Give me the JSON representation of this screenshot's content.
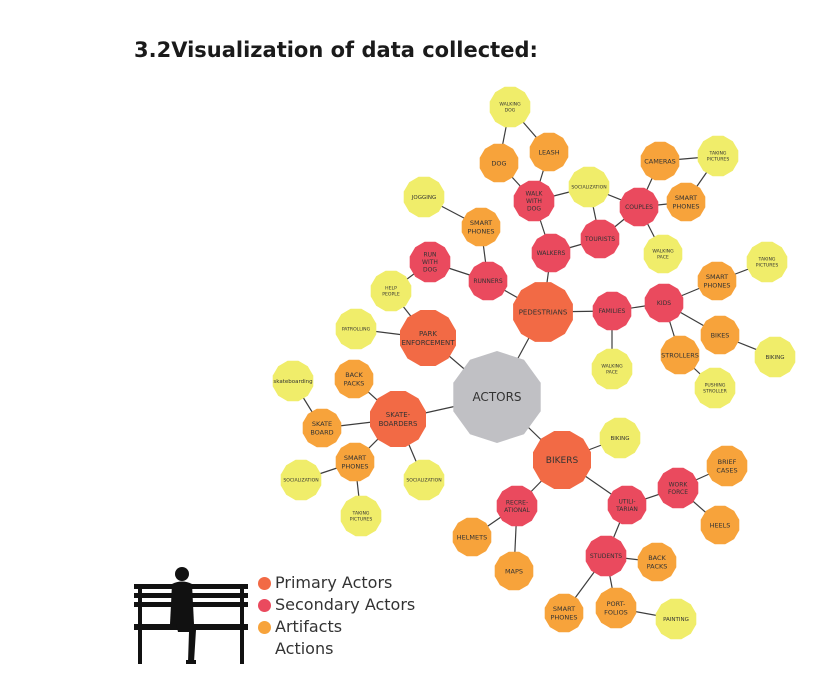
{
  "title": "3.2Visualization of data collected:",
  "colors": {
    "center": "#c0c0c4",
    "primary": "#f26a45",
    "secondary": "#ea4a5e",
    "artifact": "#f7a33b",
    "action": "#f0ed6a",
    "edge": "#3d3d3d",
    "bench": "#111111"
  },
  "legend": [
    {
      "label": "Primary Actors",
      "color": "#f26a45"
    },
    {
      "label": "Secondary Actors",
      "color": "#ea4a5e"
    },
    {
      "label": "Artifacts",
      "color": "#f7a33b"
    },
    {
      "label": "Actions",
      "color": null
    }
  ],
  "nodes": [
    {
      "id": "actors",
      "label": "ACTORS",
      "kind": "center"
    },
    {
      "id": "pedestrians",
      "label": "PEDESTRIANS",
      "kind": "primary"
    },
    {
      "id": "park-enforcement",
      "label": "PARK ENFORCEMENT",
      "kind": "primary"
    },
    {
      "id": "skateboarders",
      "label": "SKATE- BOARDERS",
      "kind": "primary"
    },
    {
      "id": "bikers",
      "label": "BIKERS",
      "kind": "primary"
    },
    {
      "id": "walkers",
      "label": "WALKERS",
      "kind": "secondary"
    },
    {
      "id": "runners",
      "label": "RUNNERS",
      "kind": "secondary"
    },
    {
      "id": "families",
      "label": "FAMILIES",
      "kind": "secondary"
    },
    {
      "id": "walk-with-dog",
      "label": "WALK WITH DOG",
      "kind": "secondary"
    },
    {
      "id": "tourists",
      "label": "TOURISTS",
      "kind": "secondary"
    },
    {
      "id": "couples",
      "label": "COUPLES",
      "kind": "secondary"
    },
    {
      "id": "run-with-dog",
      "label": "RUN WITH DOG",
      "kind": "secondary"
    },
    {
      "id": "kids",
      "label": "KIDS",
      "kind": "secondary"
    },
    {
      "id": "recreational",
      "label": "RECRE- ATIONAL",
      "kind": "secondary"
    },
    {
      "id": "utilitarian",
      "label": "UTILI- TARIAN",
      "kind": "secondary"
    },
    {
      "id": "work-force",
      "label": "WORK FORCE",
      "kind": "secondary"
    },
    {
      "id": "students",
      "label": "STUDENTS",
      "kind": "secondary"
    },
    {
      "id": "dog",
      "label": "DOG",
      "kind": "artifact"
    },
    {
      "id": "leash",
      "label": "LEASH",
      "kind": "artifact"
    },
    {
      "id": "cameras",
      "label": "CAMERAS",
      "kind": "artifact"
    },
    {
      "id": "smart-phones-couples",
      "label": "SMART PHONES",
      "kind": "artifact"
    },
    {
      "id": "smart-phones-runners",
      "label": "SMART PHONES",
      "kind": "artifact"
    },
    {
      "id": "smart-phones-kids",
      "label": "SMART PHONES",
      "kind": "artifact"
    },
    {
      "id": "bikes",
      "label": "BIKES",
      "kind": "artifact"
    },
    {
      "id": "strollers",
      "label": "STROLLERS",
      "kind": "artifact"
    },
    {
      "id": "back-packs-skate",
      "label": "BACK PACKS",
      "kind": "artifact"
    },
    {
      "id": "skate-board",
      "label": "SKATE BOARD",
      "kind": "artifact"
    },
    {
      "id": "smart-phones-skate",
      "label": "SMART PHONES",
      "kind": "artifact"
    },
    {
      "id": "brief-cases",
      "label": "BRIEF CASES",
      "kind": "artifact"
    },
    {
      "id": "heels",
      "label": "HEELS",
      "kind": "artifact"
    },
    {
      "id": "helmets",
      "label": "HELMETS",
      "kind": "artifact"
    },
    {
      "id": "maps",
      "label": "MAPS",
      "kind": "artifact"
    },
    {
      "id": "back-packs-students",
      "label": "BACK PACKS",
      "kind": "artifact"
    },
    {
      "id": "portfolios",
      "label": "PORT- FOLIOS",
      "kind": "artifact"
    },
    {
      "id": "smart-phones-students",
      "label": "SMART PHONES",
      "kind": "artifact"
    },
    {
      "id": "walking-dog",
      "label": "WALKING DOG",
      "kind": "action"
    },
    {
      "id": "socialization-top",
      "label": "SOCIALIZATION",
      "kind": "action"
    },
    {
      "id": "taking-pictures-top",
      "label": "TAKING PICTURES",
      "kind": "action"
    },
    {
      "id": "walking-pace-couples",
      "label": "WALKING PACE",
      "kind": "action"
    },
    {
      "id": "jogging",
      "label": "JOGGING",
      "kind": "action"
    },
    {
      "id": "help-people",
      "label": "HELP PEOPLE",
      "kind": "action"
    },
    {
      "id": "patrolling",
      "label": "PATROLLING",
      "kind": "action"
    },
    {
      "id": "taking-pictures-kids",
      "label": "TAKING PICTURES",
      "kind": "action"
    },
    {
      "id": "biking-kids",
      "label": "BIKING",
      "kind": "action"
    },
    {
      "id": "pushing-stroller",
      "label": "PUSHING STROLLER",
      "kind": "action"
    },
    {
      "id": "walking-pace-families",
      "label": "WALKING PACE",
      "kind": "action"
    },
    {
      "id": "skateboarding",
      "label": "skateboarding",
      "kind": "action"
    },
    {
      "id": "socialization-left",
      "label": "SOCIALIZATION",
      "kind": "action"
    },
    {
      "id": "socialization-skate",
      "label": "SOCIALIZATION",
      "kind": "action"
    },
    {
      "id": "taking-pictures-skate",
      "label": "TAKING PICTURES",
      "kind": "action"
    },
    {
      "id": "biking-bikers",
      "label": "BIKING",
      "kind": "action"
    },
    {
      "id": "painting",
      "label": "PAINTING",
      "kind": "action"
    }
  ],
  "edges": [
    [
      "actors",
      "pedestrians"
    ],
    [
      "actors",
      "park-enforcement"
    ],
    [
      "actors",
      "skateboarders"
    ],
    [
      "actors",
      "bikers"
    ],
    [
      "pedestrians",
      "walkers"
    ],
    [
      "pedestrians",
      "runners"
    ],
    [
      "pedestrians",
      "families"
    ],
    [
      "walkers",
      "walk-with-dog"
    ],
    [
      "walkers",
      "tourists"
    ],
    [
      "walk-with-dog",
      "dog"
    ],
    [
      "walk-with-dog",
      "leash"
    ],
    [
      "walk-with-dog",
      "socialization-top"
    ],
    [
      "leash",
      "walking-dog"
    ],
    [
      "dog",
      "walking-dog"
    ],
    [
      "tourists",
      "couples"
    ],
    [
      "tourists",
      "socialization-top"
    ],
    [
      "socialization-top",
      "couples"
    ],
    [
      "couples",
      "cameras"
    ],
    [
      "couples",
      "smart-phones-couples"
    ],
    [
      "couples",
      "walking-pace-couples"
    ],
    [
      "cameras",
      "taking-pictures-top"
    ],
    [
      "smart-phones-couples",
      "taking-pictures-top"
    ],
    [
      "runners",
      "run-with-dog"
    ],
    [
      "runners",
      "smart-phones-runners"
    ],
    [
      "smart-phones-runners",
      "jogging"
    ],
    [
      "run-with-dog",
      "help-people"
    ],
    [
      "families",
      "kids"
    ],
    [
      "families",
      "walking-pace-families"
    ],
    [
      "kids",
      "smart-phones-kids"
    ],
    [
      "kids",
      "bikes"
    ],
    [
      "kids",
      "strollers"
    ],
    [
      "smart-phones-kids",
      "taking-pictures-kids"
    ],
    [
      "bikes",
      "biking-kids"
    ],
    [
      "strollers",
      "pushing-stroller"
    ],
    [
      "park-enforcement",
      "help-people"
    ],
    [
      "park-enforcement",
      "patrolling"
    ],
    [
      "skateboarders",
      "back-packs-skate"
    ],
    [
      "skateboarders",
      "skate-board"
    ],
    [
      "skateboarders",
      "smart-phones-skate"
    ],
    [
      "skateboarders",
      "socialization-skate"
    ],
    [
      "skate-board",
      "skateboarding"
    ],
    [
      "smart-phones-skate",
      "socialization-left"
    ],
    [
      "smart-phones-skate",
      "taking-pictures-skate"
    ],
    [
      "bikers",
      "biking-bikers"
    ],
    [
      "bikers",
      "recreational"
    ],
    [
      "bikers",
      "utilitarian"
    ],
    [
      "recreational",
      "helmets"
    ],
    [
      "recreational",
      "maps"
    ],
    [
      "utilitarian",
      "work-force"
    ],
    [
      "utilitarian",
      "students"
    ],
    [
      "work-force",
      "brief-cases"
    ],
    [
      "work-force",
      "heels"
    ],
    [
      "students",
      "back-packs-students"
    ],
    [
      "students",
      "portfolios"
    ],
    [
      "students",
      "smart-phones-students"
    ],
    [
      "portfolios",
      "painting"
    ]
  ]
}
